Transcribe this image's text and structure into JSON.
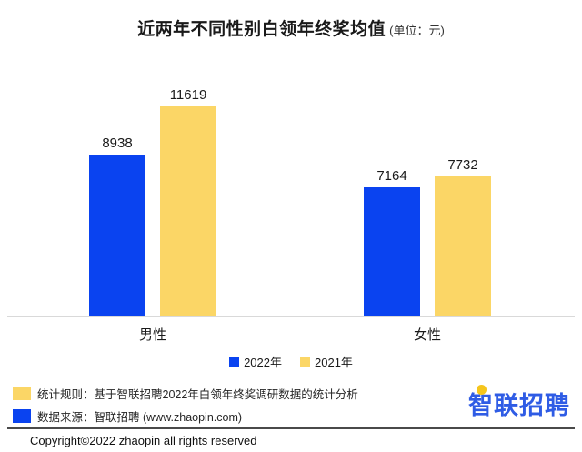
{
  "title": {
    "main": "近两年不同性别白领年终奖均值",
    "unit": "(单位：元)"
  },
  "chart_data": {
    "type": "bar",
    "title": "近两年不同性别白领年终奖均值",
    "unit": "元",
    "categories": [
      "男性",
      "女性"
    ],
    "series": [
      {
        "name": "2022年",
        "color": "#0A43F0",
        "values": [
          8938,
          7164
        ]
      },
      {
        "name": "2021年",
        "color": "#FBD666",
        "values": [
          11619,
          7732
        ]
      }
    ],
    "ylim": [
      0,
      12000
    ],
    "grid": false,
    "legend_position": "bottom",
    "value_labels_shown": true,
    "axis_line_color": "#d9d9d9"
  },
  "footnotes": [
    {
      "marker_color": "#FBD666",
      "text": "统计规则：基于智联招聘2022年白领年终奖调研数据的统计分析"
    },
    {
      "marker_color": "#0A43F0",
      "text": "数据来源：智联招聘 (www.zhaopin.com)"
    }
  ],
  "logo": {
    "text": "智联招聘",
    "color": "#2F5CE5",
    "dot_color": "#F5C51C"
  },
  "copyright": "Copyright©2022 zhaopin all rights reserved"
}
